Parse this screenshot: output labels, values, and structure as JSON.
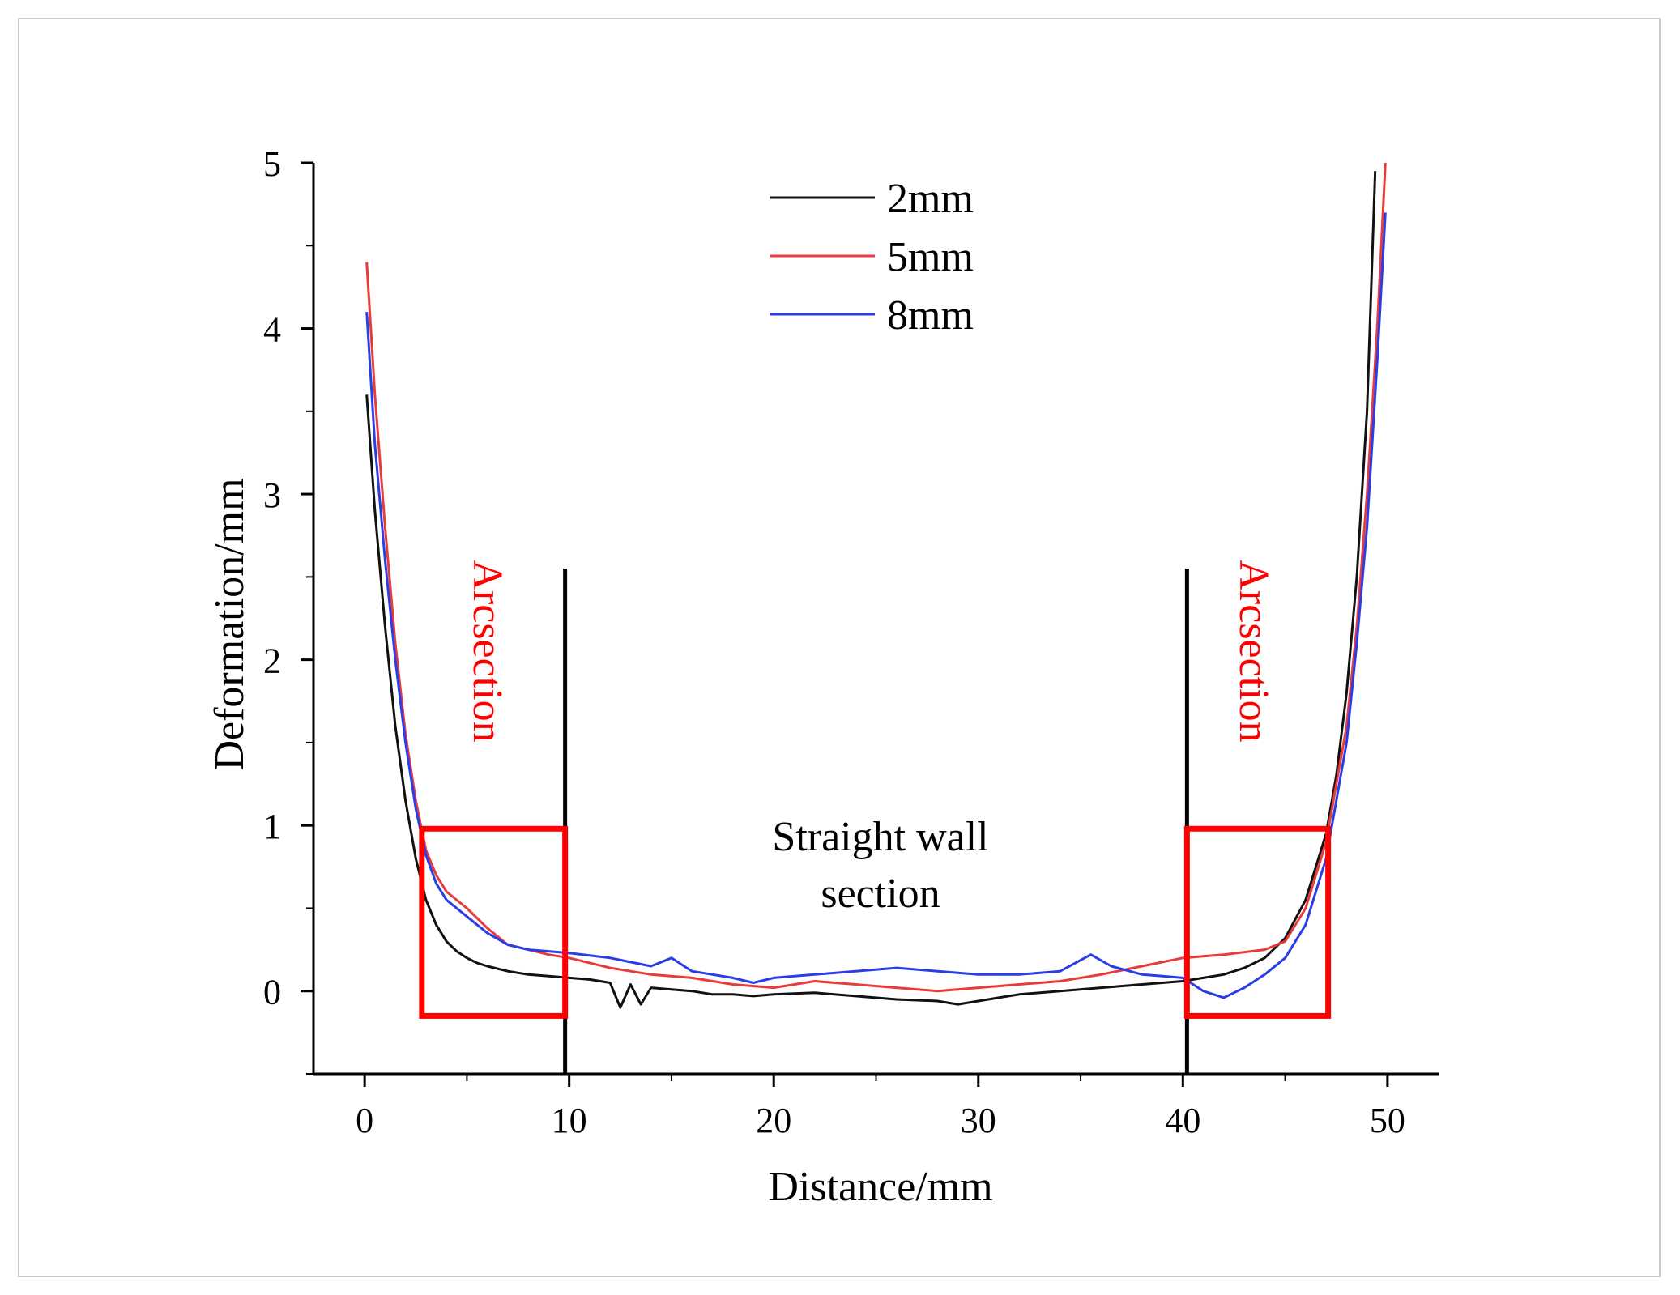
{
  "chart_data": {
    "type": "line",
    "title": "",
    "xlabel": "Distance/mm",
    "ylabel": "Deformation/mm",
    "xlim": [
      -2.5,
      52.5
    ],
    "ylim": [
      -0.5,
      5
    ],
    "x_ticks": [
      0,
      10,
      20,
      30,
      40,
      50
    ],
    "y_ticks": [
      0,
      1,
      2,
      3,
      4,
      5
    ],
    "x_tick_labels": [
      "0",
      "10",
      "20",
      "30",
      "40",
      "50"
    ],
    "y_tick_labels": [
      "0",
      "1",
      "2",
      "3",
      "4",
      "5"
    ],
    "legend_position": "top-center",
    "series": [
      {
        "name": "2mm",
        "color": "#111111",
        "x": [
          0.1,
          0.5,
          1.0,
          1.5,
          2.0,
          2.5,
          3.0,
          3.5,
          4.0,
          4.5,
          5.0,
          5.5,
          6.0,
          7.0,
          8.0,
          9.0,
          10.0,
          11.0,
          12.0,
          12.5,
          13.0,
          13.5,
          14.0,
          15.0,
          16.0,
          17.0,
          18.0,
          19.0,
          20.0,
          22.0,
          24.0,
          26.0,
          28.0,
          29.0,
          30.0,
          31.0,
          32.0,
          34.0,
          36.0,
          38.0,
          40.0,
          41.0,
          42.0,
          43.0,
          44.0,
          45.0,
          46.0,
          47.0,
          47.5,
          48.0,
          48.5,
          49.0,
          49.4
        ],
        "y": [
          3.6,
          2.9,
          2.2,
          1.6,
          1.15,
          0.8,
          0.55,
          0.4,
          0.3,
          0.24,
          0.2,
          0.17,
          0.15,
          0.12,
          0.1,
          0.09,
          0.08,
          0.07,
          0.05,
          -0.1,
          0.04,
          -0.08,
          0.02,
          0.01,
          0.0,
          -0.02,
          -0.02,
          -0.03,
          -0.02,
          -0.01,
          -0.03,
          -0.05,
          -0.06,
          -0.08,
          -0.06,
          -0.04,
          -0.02,
          0.0,
          0.02,
          0.04,
          0.06,
          0.08,
          0.1,
          0.14,
          0.2,
          0.32,
          0.55,
          0.95,
          1.3,
          1.8,
          2.5,
          3.5,
          4.95
        ]
      },
      {
        "name": "5mm",
        "color": "#e83c3c",
        "x": [
          0.1,
          0.5,
          1.0,
          1.5,
          2.0,
          2.5,
          3.0,
          3.5,
          4.0,
          5.0,
          6.0,
          7.0,
          8.0,
          9.0,
          10.0,
          12.0,
          14.0,
          16.0,
          18.0,
          20.0,
          22.0,
          24.0,
          26.0,
          28.0,
          30.0,
          32.0,
          34.0,
          36.0,
          38.0,
          40.0,
          42.0,
          44.0,
          45.0,
          46.0,
          47.0,
          48.0,
          48.5,
          49.0,
          49.5,
          49.9
        ],
        "y": [
          4.4,
          3.6,
          2.8,
          2.1,
          1.55,
          1.15,
          0.85,
          0.7,
          0.6,
          0.5,
          0.38,
          0.28,
          0.25,
          0.22,
          0.2,
          0.14,
          0.1,
          0.08,
          0.04,
          0.02,
          0.06,
          0.04,
          0.02,
          0.0,
          0.02,
          0.04,
          0.06,
          0.1,
          0.15,
          0.2,
          0.22,
          0.25,
          0.3,
          0.5,
          0.9,
          1.6,
          2.2,
          3.0,
          4.0,
          5.0
        ]
      },
      {
        "name": "8mm",
        "color": "#2a3ee8",
        "x": [
          0.1,
          0.5,
          1.0,
          1.5,
          2.0,
          2.5,
          3.0,
          3.5,
          4.0,
          5.0,
          6.0,
          7.0,
          8.0,
          9.0,
          10.0,
          12.0,
          14.0,
          15.0,
          16.0,
          18.0,
          19.0,
          20.0,
          22.0,
          24.0,
          26.0,
          28.0,
          30.0,
          32.0,
          34.0,
          35.5,
          36.5,
          38.0,
          39.0,
          40.0,
          41.0,
          42.0,
          43.0,
          44.0,
          45.0,
          46.0,
          47.0,
          48.0,
          48.5,
          49.0,
          49.5,
          49.9
        ],
        "y": [
          4.1,
          3.3,
          2.6,
          2.0,
          1.5,
          1.1,
          0.82,
          0.65,
          0.55,
          0.45,
          0.35,
          0.28,
          0.25,
          0.24,
          0.23,
          0.2,
          0.15,
          0.2,
          0.12,
          0.08,
          0.05,
          0.08,
          0.1,
          0.12,
          0.14,
          0.12,
          0.1,
          0.1,
          0.12,
          0.22,
          0.15,
          0.1,
          0.09,
          0.08,
          0.0,
          -0.04,
          0.02,
          0.1,
          0.2,
          0.4,
          0.8,
          1.5,
          2.1,
          2.8,
          3.8,
          4.7
        ]
      }
    ],
    "annotations": {
      "left_arc_label": "Arcsection",
      "right_arc_label": "Arcsection",
      "straight_label_line1": "Straight wall",
      "straight_label_line2": "section",
      "divider_x": [
        9.8,
        40.2
      ],
      "divider_top_y": 2.55,
      "arc_boxes": [
        {
          "x0": 2.8,
          "x1": 9.8,
          "y0": -0.15,
          "y1": 0.98
        },
        {
          "x0": 40.2,
          "x1": 47.1,
          "y0": -0.15,
          "y1": 0.98
        }
      ],
      "box_color": "#ff0000",
      "arc_label_color": "#ff0000"
    }
  }
}
